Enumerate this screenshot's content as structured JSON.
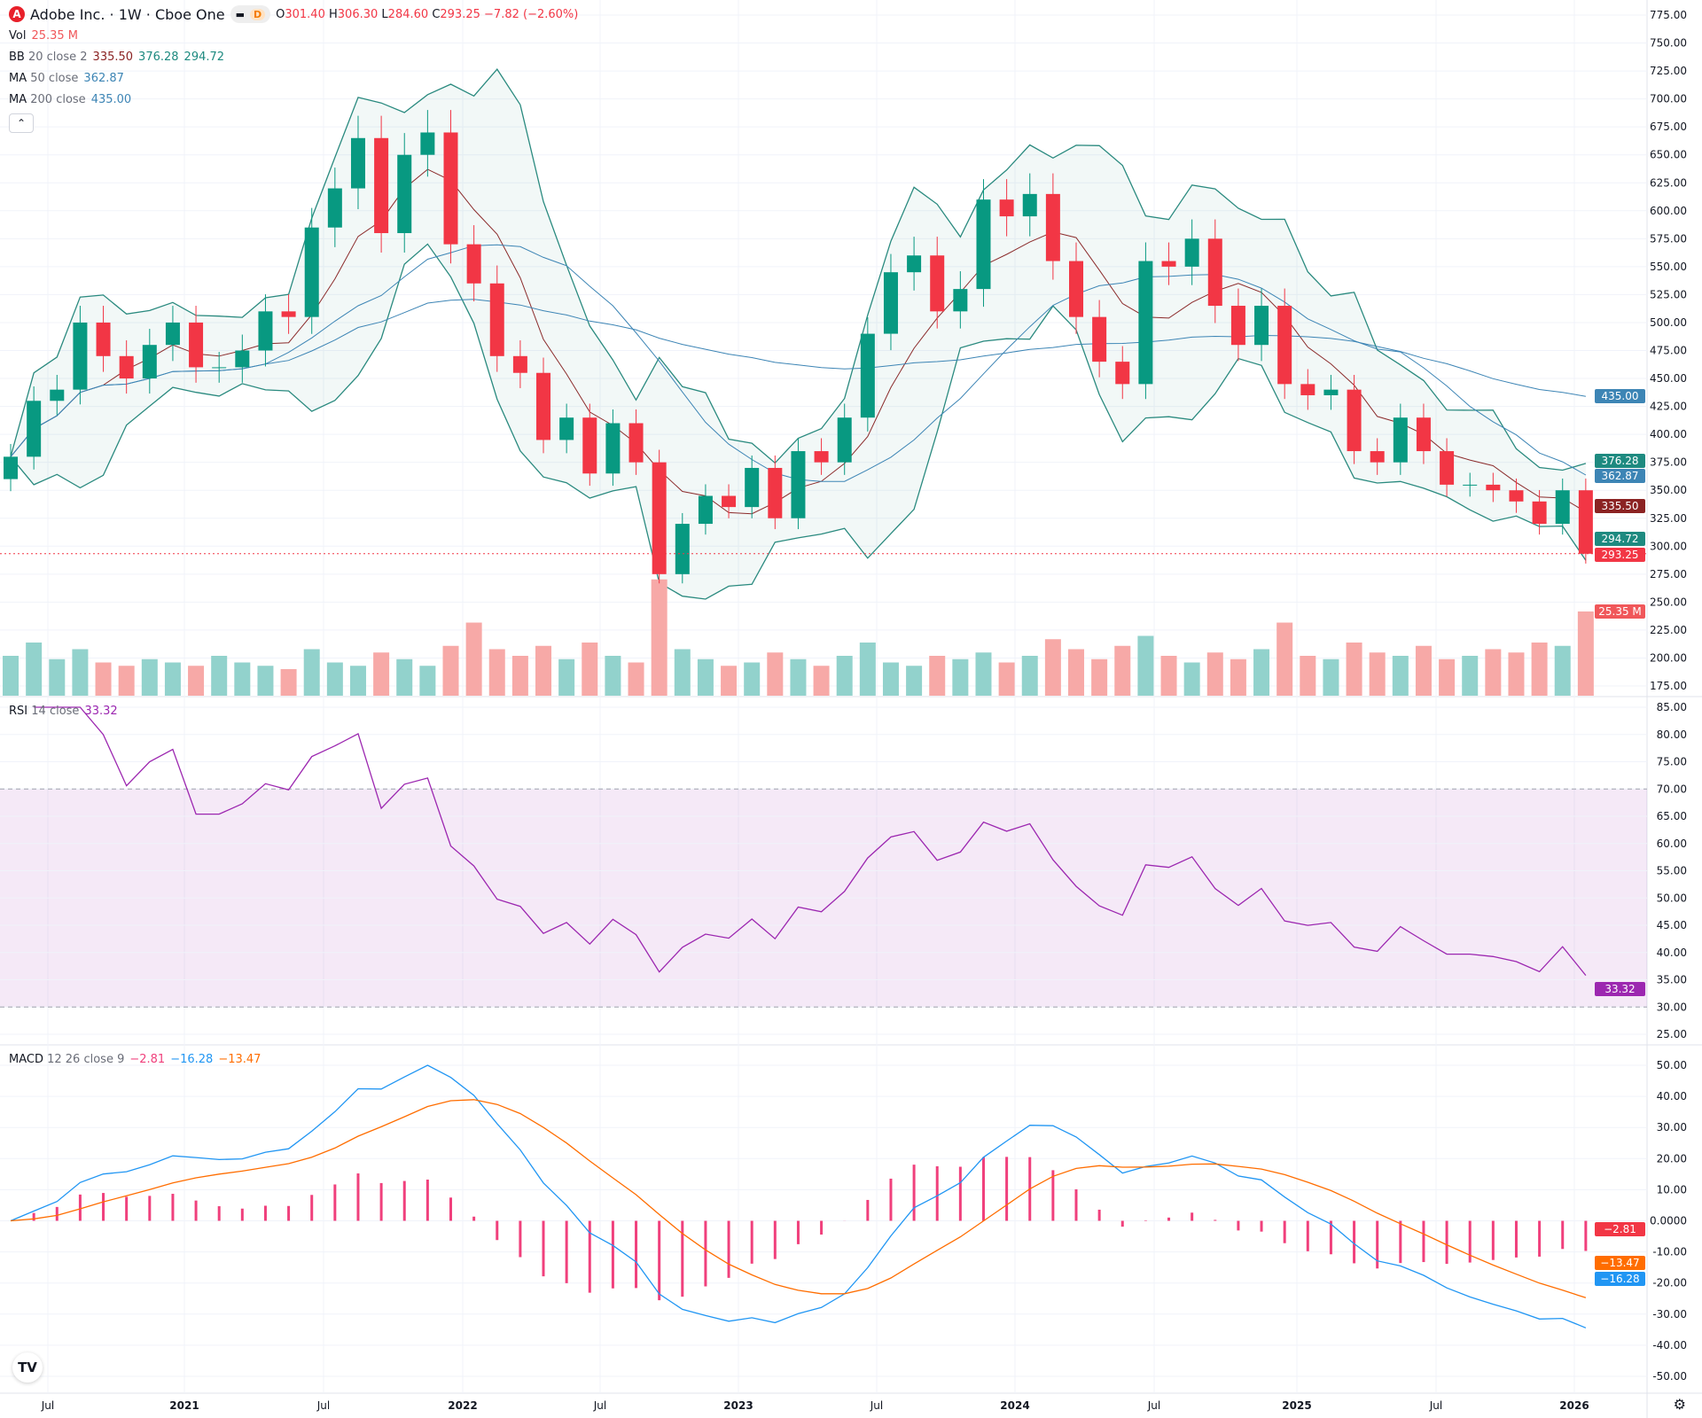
{
  "header": {
    "symbol": "Adobe Inc. · 1W · Cboe One",
    "logo_letter": "A",
    "interval_badge": "D",
    "o_label": "O",
    "o": "301.40",
    "h_label": "H",
    "h": "306.30",
    "l_label": "L",
    "l": "284.60",
    "c_label": "C",
    "c": "293.25",
    "change": "−7.82 (−2.60%)"
  },
  "legends": {
    "vol": {
      "name": "Vol",
      "value": "25.35 M"
    },
    "bb": {
      "name": "BB",
      "params": "20 close 2",
      "basis": "335.50",
      "upper": "376.28",
      "lower": "294.72"
    },
    "ma50": {
      "name": "MA",
      "params": "50 close",
      "value": "362.87"
    },
    "ma200": {
      "name": "MA",
      "params": "200 close",
      "value": "435.00"
    },
    "rsi": {
      "name": "RSI",
      "params": "14 close",
      "value": "33.32"
    },
    "macd": {
      "name": "MACD",
      "params": "12 26 close 9",
      "hist": "−2.81",
      "macd": "−16.28",
      "signal": "−13.47"
    }
  },
  "collapse_icon": "chevron-up-icon",
  "collapse_glyph": "⌃",
  "brand_mark": "TV",
  "settings_icon": "gear-icon",
  "settings_glyph": "⚙",
  "colors": {
    "up": "#089981",
    "down": "#f23645",
    "vol_up": "#92d2cc",
    "vol_down": "#f7a9a7",
    "bb": "#2a8a7f",
    "bb_basis": "#8b2b2b",
    "ma50": "#3d85b5",
    "ma200": "#3d85b5",
    "rsi": "#9c27b0",
    "macd": "#2196f3",
    "signal": "#ff6d00",
    "hist": "#f0407c"
  },
  "chart_data": {
    "type": "candlestick",
    "categories": [
      "2020-05",
      "2020-06",
      "2020-07",
      "2020-08",
      "2020-09",
      "2020-10",
      "2020-11",
      "2020-12",
      "2021-01",
      "2021-02",
      "2021-03",
      "2021-04",
      "2021-05",
      "2021-06",
      "2021-07",
      "2021-08",
      "2021-09",
      "2021-10",
      "2021-11",
      "2021-12",
      "2022-01",
      "2022-02",
      "2022-03",
      "2022-04",
      "2022-05",
      "2022-06",
      "2022-07",
      "2022-08",
      "2022-09",
      "2022-10",
      "2022-11",
      "2022-12",
      "2023-01",
      "2023-02",
      "2023-03",
      "2023-04",
      "2023-05",
      "2023-06",
      "2023-07",
      "2023-08",
      "2023-09",
      "2023-10",
      "2023-11",
      "2023-12",
      "2024-01",
      "2024-02",
      "2024-03",
      "2024-04",
      "2024-05",
      "2024-06",
      "2024-07",
      "2024-08",
      "2024-09",
      "2024-10",
      "2024-11",
      "2024-12",
      "2025-01",
      "2025-02",
      "2025-03",
      "2025-04",
      "2025-05",
      "2025-06",
      "2025-07",
      "2025-08",
      "2025-09",
      "2025-10",
      "2025-11",
      "2025-12",
      "2026-01"
    ],
    "close": [
      380,
      430,
      440,
      500,
      470,
      450,
      480,
      500,
      460,
      460,
      475,
      510,
      505,
      585,
      620,
      665,
      580,
      650,
      670,
      570,
      535,
      470,
      455,
      395,
      415,
      365,
      410,
      375,
      275,
      320,
      345,
      335,
      370,
      325,
      385,
      375,
      415,
      490,
      545,
      560,
      510,
      530,
      610,
      595,
      615,
      555,
      505,
      465,
      445,
      555,
      550,
      575,
      515,
      480,
      515,
      445,
      435,
      440,
      385,
      375,
      415,
      385,
      355,
      355,
      350,
      340,
      320,
      350,
      293.25
    ],
    "volume_m": [
      12,
      16,
      11,
      14,
      10,
      9,
      11,
      10,
      9,
      12,
      10,
      9,
      8,
      14,
      10,
      9,
      13,
      11,
      9,
      15,
      22,
      14,
      12,
      15,
      11,
      16,
      12,
      10,
      35,
      14,
      11,
      9,
      10,
      13,
      11,
      9,
      12,
      16,
      10,
      9,
      12,
      11,
      13,
      10,
      12,
      17,
      14,
      11,
      15,
      18,
      12,
      10,
      13,
      11,
      14,
      22,
      12,
      11,
      16,
      13,
      12,
      15,
      11,
      12,
      14,
      13,
      16,
      15,
      25.35
    ],
    "price_ticks": [
      775,
      750,
      725,
      700,
      675,
      650,
      625,
      600,
      575,
      550,
      525,
      500,
      475,
      450,
      425,
      400,
      375,
      350,
      325,
      300,
      275,
      250,
      225,
      200,
      175
    ],
    "rsi_ticks": [
      85,
      80,
      75,
      70,
      65,
      60,
      55,
      50,
      45,
      40,
      35,
      30,
      25
    ],
    "macd_ticks": [
      50,
      40,
      30,
      20,
      10,
      0,
      -10,
      -20,
      -30,
      -40,
      -50
    ],
    "time_labels": [
      "Jul",
      "2021",
      "Jul",
      "2022",
      "Jul",
      "2023",
      "Jul",
      "2024",
      "Jul",
      "2025",
      "Jul",
      "2026"
    ],
    "price_badges": [
      {
        "text": "435.00",
        "color": "#3d85b5"
      },
      {
        "text": "376.28",
        "color": "#1e8a80"
      },
      {
        "text": "362.87",
        "color": "#3d85b5"
      },
      {
        "text": "335.50",
        "color": "#8b2323"
      },
      {
        "text": "294.72",
        "color": "#1e8a80"
      },
      {
        "text": "293.25",
        "color": "#f23645"
      },
      {
        "text": "25.35 M",
        "color": "#f0575a"
      }
    ],
    "rsi_badge": {
      "text": "33.32",
      "color": "#9c27b0"
    },
    "macd_badges": [
      {
        "text": "−2.81",
        "color": "#f23645"
      },
      {
        "text": "−13.47",
        "color": "#ff6d00"
      },
      {
        "text": "−16.28",
        "color": "#2196f3"
      }
    ],
    "rsi_band": [
      30,
      70
    ],
    "grid": true
  }
}
